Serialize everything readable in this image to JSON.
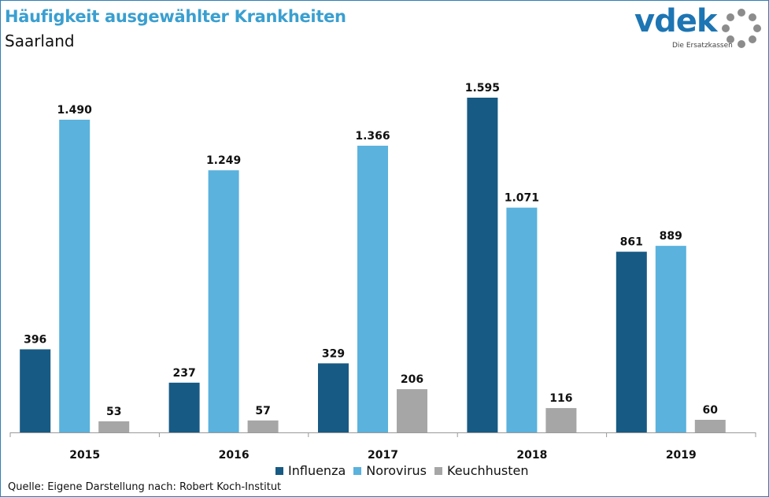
{
  "title": "Häufigkeit ausgewählter Krankheiten",
  "subtitle": "Saarland",
  "source": "Quelle: Eigene Darstellung nach: Robert Koch-Institut",
  "logo": {
    "text": "vdek",
    "tagline": "Die Ersatzkassen",
    "icon": "dotted-ring-icon"
  },
  "colors": {
    "Influenza": "#175a84",
    "Norovirus": "#5ab2dd",
    "Keuchhusten": "#a6a6a6",
    "title": "#3a9fd0"
  },
  "chart_data": {
    "type": "bar",
    "categories": [
      "2015",
      "2016",
      "2017",
      "2018",
      "2019"
    ],
    "series": [
      {
        "name": "Influenza",
        "values": [
          396,
          237,
          329,
          1595,
          861
        ],
        "labels": [
          "396",
          "237",
          "329",
          "1.595",
          "861"
        ]
      },
      {
        "name": "Norovirus",
        "values": [
          1490,
          1249,
          1366,
          1071,
          889
        ],
        "labels": [
          "1.490",
          "1.249",
          "1.366",
          "1.071",
          "889"
        ]
      },
      {
        "name": "Keuchhusten",
        "values": [
          53,
          57,
          206,
          116,
          60
        ],
        "labels": [
          "53",
          "57",
          "206",
          "116",
          "60"
        ]
      }
    ],
    "ylim": [
      0,
      1600
    ],
    "grid": false,
    "legend": "bottom-center"
  }
}
